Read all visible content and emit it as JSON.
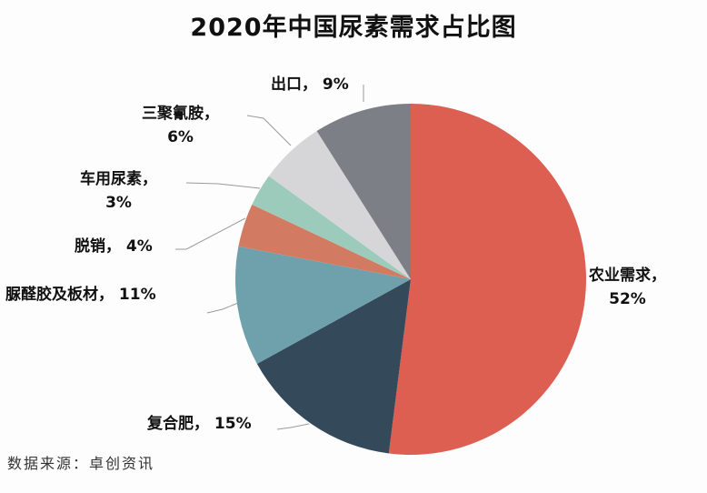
{
  "title": "2020年中国尿素需求占比图",
  "source": "数据来源：卓创资讯",
  "chart_data": {
    "type": "pie",
    "title": "2020年中国尿素需求占比图",
    "start_angle": "12 o'clock, clockwise",
    "categories": [
      "农业需求",
      "复合肥",
      "脲醛胶及板材",
      "脱销",
      "车用尿素",
      "三聚氰胺",
      "出口"
    ],
    "values": [
      52,
      15,
      11,
      4,
      3,
      6,
      9
    ],
    "unit": "%",
    "colors": [
      "#dc5f52",
      "#34495a",
      "#6fa1ad",
      "#d27b62",
      "#9ccbbb",
      "#d6d6d8",
      "#7d7f86"
    ],
    "labels": [
      {
        "line1": "农业需求，",
        "line2": "52%"
      },
      {
        "line1": "复合肥， 15%",
        "line2": ""
      },
      {
        "line1": "脲醛胶及板材， 11%",
        "line2": ""
      },
      {
        "line1": "脱销， 4%",
        "line2": ""
      },
      {
        "line1": "车用尿素，",
        "line2": "3%"
      },
      {
        "line1": "三聚氰胺，",
        "line2": "6%"
      },
      {
        "line1": "出口， 9%",
        "line2": ""
      }
    ],
    "legend": "none (data labels with leader lines)"
  }
}
